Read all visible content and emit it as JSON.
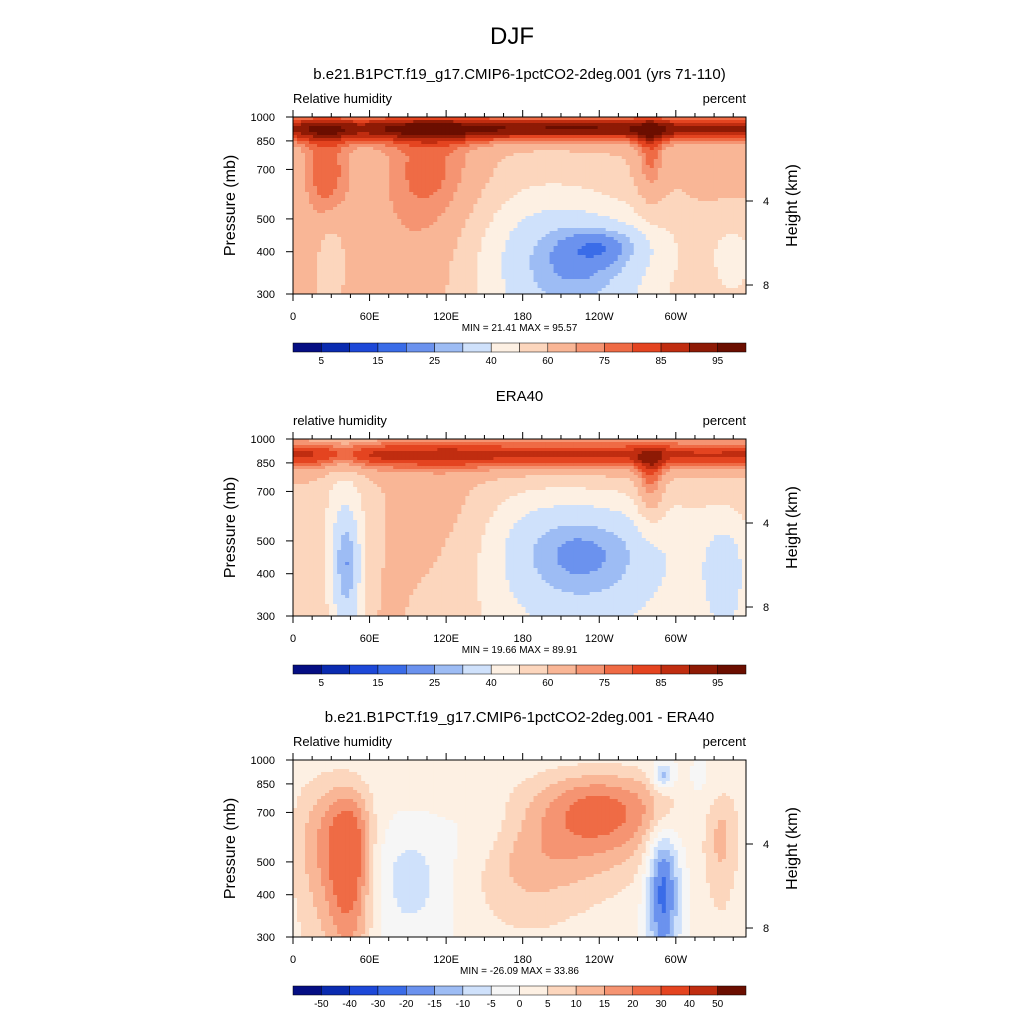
{
  "figure": {
    "title": "DJF"
  },
  "chart_data": [
    {
      "type": "heatmap",
      "title": "b.e21.B1PCT.f19_g17.CMIP6-1pctCO2-2deg.001 (yrs 71-110)",
      "left_label": "Relative humidity",
      "right_label": "percent",
      "ylabel": "Pressure (mb)",
      "y2label": "Height (km)",
      "x_ticks": [
        "0",
        "60E",
        "120E",
        "180",
        "120W",
        "60W"
      ],
      "x_tick_values": [
        0,
        60,
        120,
        180,
        240,
        300
      ],
      "xlim": [
        0,
        355
      ],
      "y_ticks": [
        "300",
        "400",
        "500",
        "700",
        "850",
        "1000"
      ],
      "y_tick_values": [
        300,
        400,
        500,
        700,
        850,
        1000
      ],
      "ylim": [
        1000,
        300
      ],
      "y2_ticks": [
        "8",
        "4"
      ],
      "y2_tick_values": [
        8,
        4
      ],
      "stats": "MIN = 21.41  MAX = 95.57",
      "colorbar_labels": [
        "5",
        "15",
        "25",
        "40",
        "60",
        "75",
        "85",
        "95"
      ],
      "colors": [
        "#050e83",
        "#0a2bb0",
        "#1d48d8",
        "#3a6ce8",
        "#6b92ee",
        "#9dbcf4",
        "#cfe1fb",
        "#fdf0e3",
        "#fcd6bd",
        "#f9b696",
        "#f59472",
        "#ef6b45",
        "#e44420",
        "#c02d10",
        "#8e1a05",
        "#6b0e00"
      ],
      "field": "model",
      "topography": true
    },
    {
      "type": "heatmap",
      "title": "ERA40",
      "left_label": "relative humidity",
      "right_label": "percent",
      "ylabel": "Pressure (mb)",
      "y2label": "Height (km)",
      "x_ticks": [
        "0",
        "60E",
        "120E",
        "180",
        "120W",
        "60W"
      ],
      "x_tick_values": [
        0,
        60,
        120,
        180,
        240,
        300
      ],
      "xlim": [
        0,
        355
      ],
      "y_ticks": [
        "300",
        "400",
        "500",
        "700",
        "850",
        "1000"
      ],
      "y_tick_values": [
        300,
        400,
        500,
        700,
        850,
        1000
      ],
      "ylim": [
        1000,
        300
      ],
      "y2_ticks": [
        "8",
        "4"
      ],
      "y2_tick_values": [
        8,
        4
      ],
      "stats": "MIN = 19.66  MAX = 89.91",
      "colorbar_labels": [
        "5",
        "15",
        "25",
        "40",
        "60",
        "75",
        "85",
        "95"
      ],
      "colors": [
        "#050e83",
        "#0a2bb0",
        "#1d48d8",
        "#3a6ce8",
        "#6b92ee",
        "#9dbcf4",
        "#cfe1fb",
        "#fdf0e3",
        "#fcd6bd",
        "#f9b696",
        "#f59472",
        "#ef6b45",
        "#e44420",
        "#c02d10",
        "#8e1a05",
        "#6b0e00"
      ],
      "field": "obs",
      "topography": false
    },
    {
      "type": "heatmap",
      "title": "b.e21.B1PCT.f19_g17.CMIP6-1pctCO2-2deg.001 - ERA40",
      "left_label": "Relative humidity",
      "right_label": "percent",
      "ylabel": "Pressure (mb)",
      "y2label": "Height (km)",
      "x_ticks": [
        "0",
        "60E",
        "120E",
        "180",
        "120W",
        "60W"
      ],
      "x_tick_values": [
        0,
        60,
        120,
        180,
        240,
        300
      ],
      "xlim": [
        0,
        355
      ],
      "y_ticks": [
        "300",
        "400",
        "500",
        "700",
        "850",
        "1000"
      ],
      "y_tick_values": [
        300,
        400,
        500,
        700,
        850,
        1000
      ],
      "ylim": [
        1000,
        300
      ],
      "y2_ticks": [
        "8",
        "4"
      ],
      "y2_tick_values": [
        8,
        4
      ],
      "stats": "MIN = -26.09  MAX = 33.86",
      "colorbar_labels": [
        "-50",
        "-40",
        "-30",
        "-20",
        "-15",
        "-10",
        "-5",
        "0",
        "5",
        "10",
        "15",
        "20",
        "30",
        "40",
        "50"
      ],
      "colors": [
        "#050e83",
        "#0a2bb0",
        "#1d48d8",
        "#3a6ce8",
        "#6b92ee",
        "#9dbcf4",
        "#cfe1fb",
        "#f6f6f6",
        "#fdf0e3",
        "#fcd6bd",
        "#f9b696",
        "#f59472",
        "#ef6b45",
        "#e44420",
        "#c02d10",
        "#6b0e00"
      ],
      "field": "diff",
      "topography": true
    }
  ]
}
